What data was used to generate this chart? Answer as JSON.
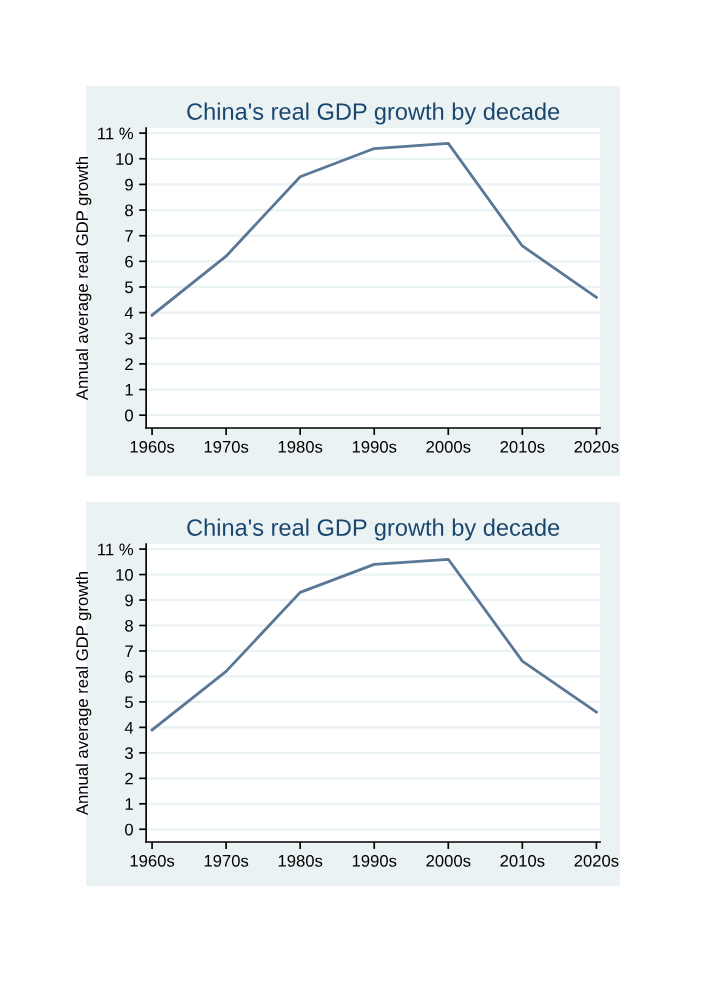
{
  "chart_data": [
    {
      "type": "line",
      "title": "China's real GDP growth by decade",
      "ylabel": "Annual average real GDP growth",
      "categories": [
        "1960s",
        "1970s",
        "1980s",
        "1990s",
        "2000s",
        "2010s",
        "2020s"
      ],
      "series": [
        {
          "color": "#5a7896",
          "values": [
            3.9,
            6.2,
            9.3,
            10.4,
            10.6,
            6.6,
            4.6
          ]
        }
      ],
      "ylim": [
        -0.5,
        11.2
      ],
      "yticks": [
        0,
        1,
        2,
        3,
        4,
        5,
        6,
        7,
        8,
        9,
        10,
        {
          "value": 11,
          "label": "11 %"
        }
      ],
      "grid": "y",
      "marker": "none",
      "line_style": "solid",
      "legend": false
    },
    {
      "type": "line",
      "title": "China's real GDP growth by decade",
      "ylabel": "Annual average real GDP growth",
      "categories": [
        "1960s",
        "1970s",
        "1980s",
        "1990s",
        "2000s",
        "2010s",
        "2020s"
      ],
      "series": [
        {
          "color": "#5a7896",
          "values": [
            3.9,
            6.2,
            9.3,
            10.4,
            10.6,
            6.6,
            4.6
          ]
        }
      ],
      "ylim": [
        -0.5,
        11.2
      ],
      "yticks": [
        0,
        1,
        2,
        3,
        4,
        5,
        6,
        7,
        8,
        9,
        10,
        {
          "value": 11,
          "label": "11 %"
        }
      ],
      "grid": "y",
      "marker": "none",
      "line_style": "solid",
      "legend": false
    }
  ]
}
